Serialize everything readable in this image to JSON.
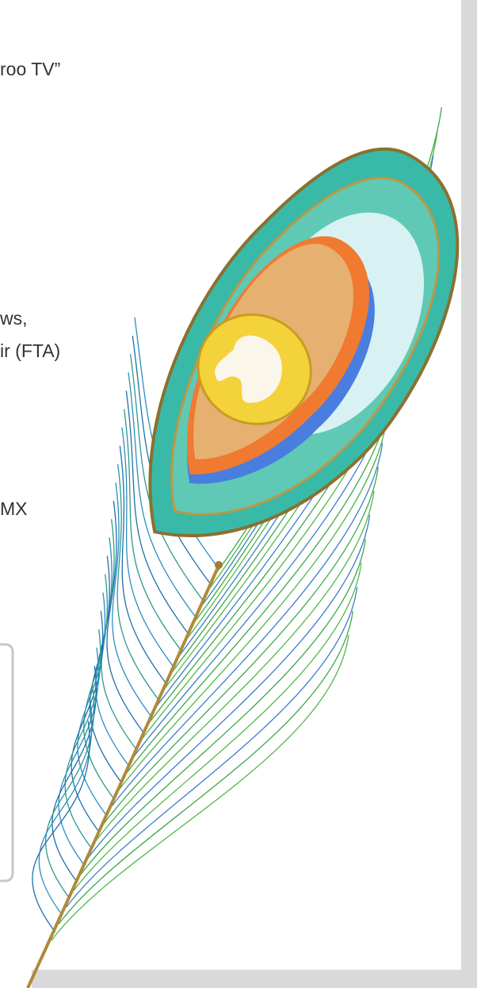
{
  "slide": {
    "lines": [
      "roo TV”",
      "ws,",
      "ir (FTA)",
      "MX"
    ]
  }
}
